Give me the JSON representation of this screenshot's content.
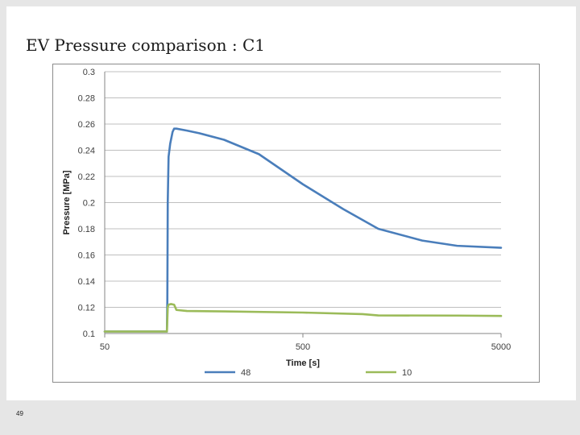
{
  "slide": {
    "title": "EV Pressure comparison : C1",
    "page_number": "49"
  },
  "chart_data": {
    "type": "line",
    "title": "",
    "xlabel": "Time [s]",
    "ylabel": "Pressure [MPa]",
    "xscale": "log",
    "xlim": [
      50,
      5000
    ],
    "ylim": [
      0.1,
      0.3
    ],
    "x_ticks": [
      "50",
      "500",
      "5000"
    ],
    "x_tick_values": [
      50,
      500,
      5000
    ],
    "y_ticks": [
      "0.1",
      "0.12",
      "0.14",
      "0.16",
      "0.18",
      "0.2",
      "0.22",
      "0.24",
      "0.26",
      "0.28",
      "0.3"
    ],
    "y_tick_values": [
      0.1,
      0.12,
      0.14,
      0.16,
      0.18,
      0.2,
      0.22,
      0.24,
      0.26,
      0.28,
      0.3
    ],
    "grid": "horizontal",
    "legend": "bottom",
    "series": [
      {
        "name": "48",
        "color": "#4a7ebb",
        "x": [
          50,
          103,
          103.5,
          104,
          105,
          107,
          110,
          112,
          115,
          130,
          150,
          200,
          300,
          500,
          800,
          1200,
          2000,
          3000,
          5000
        ],
        "y": [
          0.1015,
          0.1015,
          0.125,
          0.2,
          0.235,
          0.245,
          0.254,
          0.2565,
          0.2565,
          0.255,
          0.253,
          0.248,
          0.237,
          0.214,
          0.195,
          0.18,
          0.171,
          0.167,
          0.1655
        ]
      },
      {
        "name": "10",
        "color": "#9bbb59",
        "x": [
          50,
          103,
          104,
          105,
          108,
          112,
          115,
          130,
          200,
          500,
          1000,
          1200,
          3000,
          5000
        ],
        "y": [
          0.1015,
          0.1015,
          0.12,
          0.122,
          0.1225,
          0.122,
          0.118,
          0.1172,
          0.1169,
          0.116,
          0.1148,
          0.1138,
          0.1137,
          0.1134
        ]
      }
    ]
  }
}
